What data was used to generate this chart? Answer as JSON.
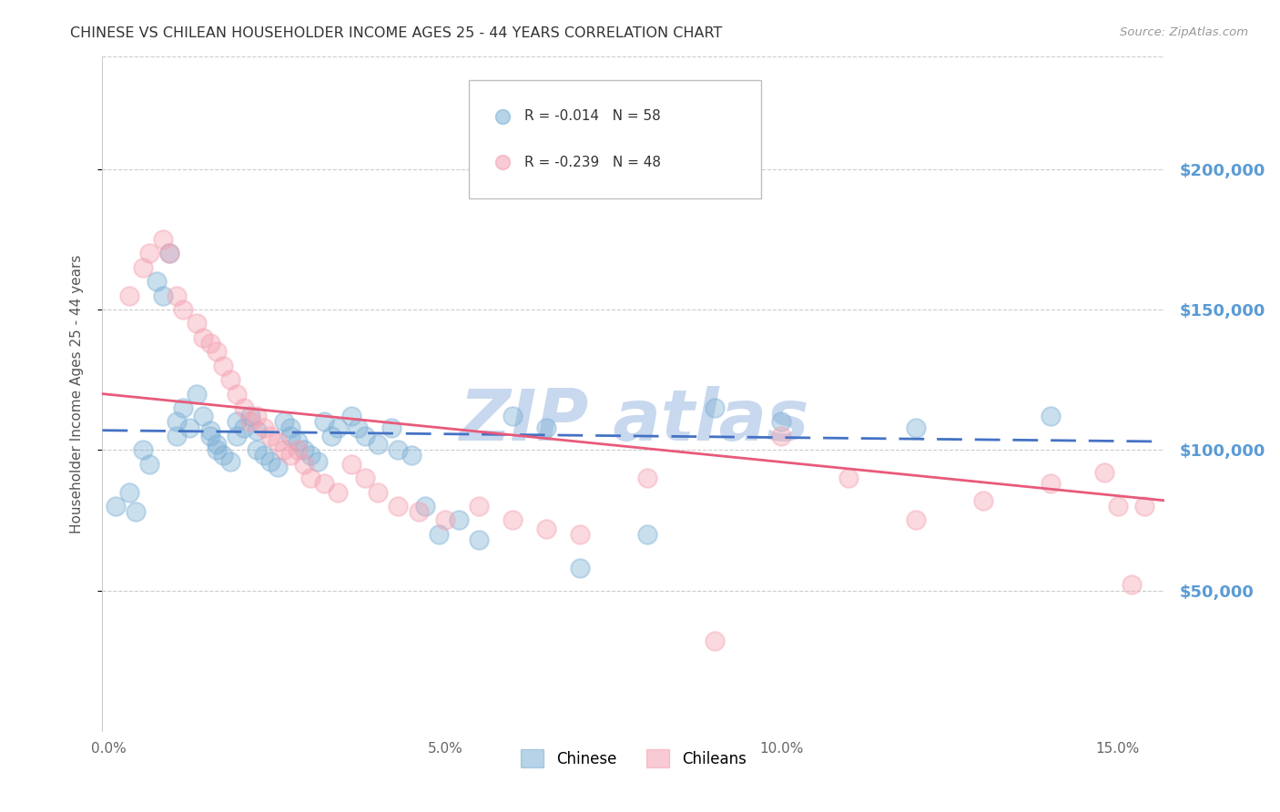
{
  "title": "CHINESE VS CHILEAN HOUSEHOLDER INCOME AGES 25 - 44 YEARS CORRELATION CHART",
  "source": "Source: ZipAtlas.com",
  "ylabel": "Householder Income Ages 25 - 44 years",
  "xlabel_ticks": [
    "0.0%",
    "5.0%",
    "10.0%",
    "15.0%"
  ],
  "xlabel_vals": [
    0.0,
    0.05,
    0.1,
    0.15
  ],
  "xlim": [
    -0.001,
    0.157
  ],
  "ylim": [
    0,
    240000
  ],
  "ytick_vals": [
    50000,
    100000,
    150000,
    200000
  ],
  "right_ytick_labels": [
    "$50,000",
    "$100,000",
    "$150,000",
    "$200,000"
  ],
  "chinese_color": "#7bafd4",
  "chilean_color": "#f4a0b0",
  "chinese_R": -0.014,
  "chinese_N": 58,
  "chilean_R": -0.239,
  "chilean_N": 48,
  "chinese_x": [
    0.001,
    0.003,
    0.004,
    0.005,
    0.006,
    0.007,
    0.008,
    0.009,
    0.01,
    0.01,
    0.011,
    0.012,
    0.013,
    0.014,
    0.015,
    0.015,
    0.016,
    0.016,
    0.017,
    0.018,
    0.019,
    0.019,
    0.02,
    0.021,
    0.022,
    0.022,
    0.023,
    0.024,
    0.025,
    0.026,
    0.027,
    0.027,
    0.028,
    0.029,
    0.03,
    0.031,
    0.032,
    0.033,
    0.034,
    0.036,
    0.037,
    0.038,
    0.04,
    0.042,
    0.043,
    0.045,
    0.047,
    0.049,
    0.052,
    0.055,
    0.06,
    0.065,
    0.07,
    0.08,
    0.09,
    0.1,
    0.12,
    0.14
  ],
  "chinese_y": [
    80000,
    85000,
    78000,
    100000,
    95000,
    160000,
    155000,
    170000,
    105000,
    110000,
    115000,
    108000,
    120000,
    112000,
    107000,
    105000,
    102000,
    100000,
    98000,
    96000,
    110000,
    105000,
    108000,
    112000,
    107000,
    100000,
    98000,
    96000,
    94000,
    110000,
    108000,
    105000,
    103000,
    100000,
    98000,
    96000,
    110000,
    105000,
    108000,
    112000,
    108000,
    105000,
    102000,
    108000,
    100000,
    98000,
    80000,
    70000,
    75000,
    68000,
    112000,
    108000,
    58000,
    70000,
    115000,
    110000,
    108000,
    112000
  ],
  "chilean_x": [
    0.003,
    0.005,
    0.006,
    0.008,
    0.009,
    0.01,
    0.011,
    0.013,
    0.014,
    0.015,
    0.016,
    0.017,
    0.018,
    0.019,
    0.02,
    0.021,
    0.022,
    0.023,
    0.024,
    0.025,
    0.026,
    0.027,
    0.028,
    0.029,
    0.03,
    0.032,
    0.034,
    0.036,
    0.038,
    0.04,
    0.043,
    0.046,
    0.05,
    0.055,
    0.06,
    0.065,
    0.07,
    0.08,
    0.09,
    0.1,
    0.11,
    0.12,
    0.13,
    0.14,
    0.148,
    0.15,
    0.152,
    0.154
  ],
  "chilean_y": [
    155000,
    165000,
    170000,
    175000,
    170000,
    155000,
    150000,
    145000,
    140000,
    138000,
    135000,
    130000,
    125000,
    120000,
    115000,
    110000,
    112000,
    108000,
    105000,
    103000,
    100000,
    98000,
    100000,
    95000,
    90000,
    88000,
    85000,
    95000,
    90000,
    85000,
    80000,
    78000,
    75000,
    80000,
    75000,
    72000,
    70000,
    90000,
    32000,
    105000,
    90000,
    75000,
    82000,
    88000,
    92000,
    80000,
    52000,
    80000
  ],
  "bg_color": "#ffffff",
  "grid_color": "#cccccc",
  "title_color": "#333333",
  "axis_label_color": "#555555",
  "ytick_color": "#5b9bd5",
  "watermark_color": "#c8d8ee",
  "legend_chinese_label": "Chinese",
  "legend_chilean_label": "Chileans"
}
